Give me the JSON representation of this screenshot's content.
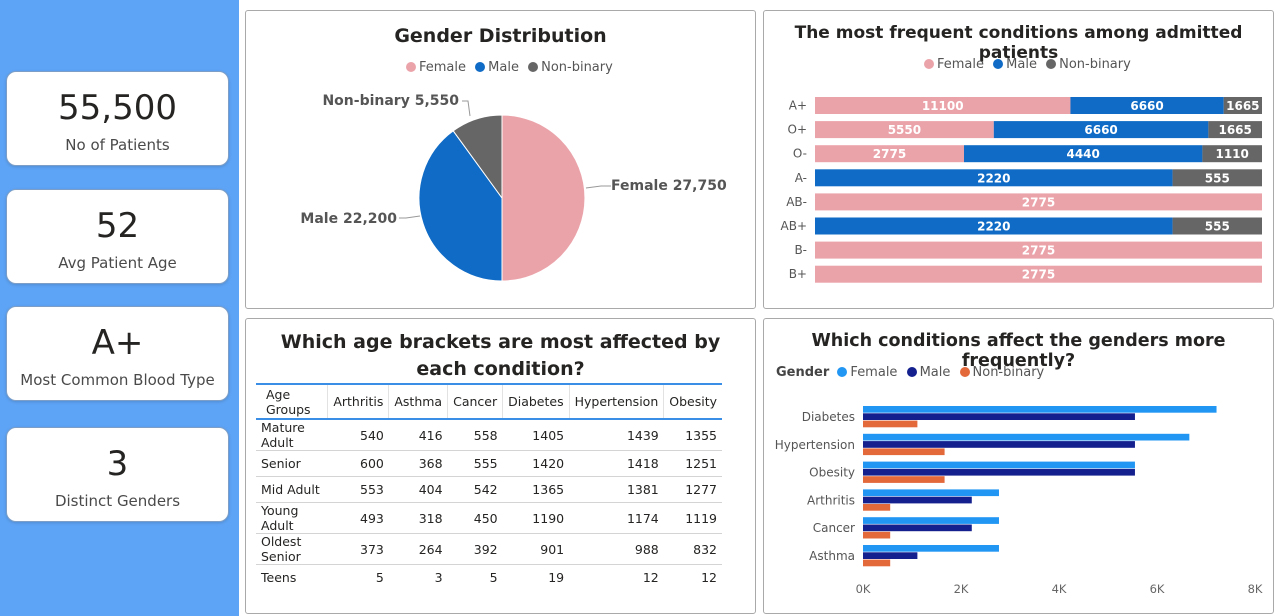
{
  "kpis": [
    {
      "value": "55,500",
      "label": "No of Patients"
    },
    {
      "value": "52",
      "label": "Avg Patient Age"
    },
    {
      "value": "A+",
      "label": "Most Common Blood Type"
    },
    {
      "value": "3",
      "label": "Distinct Genders"
    }
  ],
  "colors": {
    "female_pink": "#eba3aa",
    "male_blue": "#0f6bc5",
    "nonbinary_gray": "#666666",
    "female_light": "#2196f3",
    "male_navy": "#13208e",
    "nonbinary_orange": "#e3683a",
    "sidebar": "#5ea4f6"
  },
  "gender_chart": {
    "title": "Gender Distribution",
    "legend": [
      "Female",
      "Male",
      "Non-binary"
    ],
    "labels": [
      "Female 27,750",
      "Male 22,200",
      "Non-binary 5,550"
    ]
  },
  "blood_chart": {
    "title": "The most frequent conditions among admitted patients",
    "legend": [
      "Female",
      "Male",
      "Non-binary"
    ]
  },
  "age_table": {
    "title": "Which age brackets are most affected by each condition?",
    "headers": [
      "Age Groups",
      "Arthritis",
      "Asthma",
      "Cancer",
      "Diabetes",
      "Hypertension",
      "Obesity"
    ],
    "rows": [
      [
        "Mature Adult",
        "540",
        "416",
        "558",
        "1405",
        "1439",
        "1355"
      ],
      [
        "Senior",
        "600",
        "368",
        "555",
        "1420",
        "1418",
        "1251"
      ],
      [
        "Mid Adult",
        "553",
        "404",
        "542",
        "1365",
        "1381",
        "1277"
      ],
      [
        "Young Adult",
        "493",
        "318",
        "450",
        "1190",
        "1174",
        "1119"
      ],
      [
        "Oldest Senior",
        "373",
        "264",
        "392",
        "901",
        "988",
        "832"
      ],
      [
        "Teens",
        "5",
        "3",
        "5",
        "19",
        "12",
        "12"
      ]
    ]
  },
  "condition_chart": {
    "title": "Which conditions affect the genders more frequently?",
    "legend_title": "Gender",
    "legend": [
      "Female",
      "Male",
      "Non-binary"
    ]
  },
  "chart_data": [
    {
      "type": "pie",
      "title": "Gender Distribution",
      "categories": [
        "Female",
        "Male",
        "Non-binary"
      ],
      "values": [
        27750,
        22200,
        5550
      ],
      "legend_position": "top"
    },
    {
      "type": "bar",
      "orientation": "horizontal",
      "stacked": true,
      "normalized": true,
      "title": "The most frequent conditions among admitted patients",
      "categories": [
        "A+",
        "O+",
        "O-",
        "A-",
        "AB-",
        "AB+",
        "B-",
        "B+"
      ],
      "series": [
        {
          "name": "Female",
          "values": [
            11100,
            5550,
            2775,
            0,
            2775,
            0,
            2775,
            2775
          ]
        },
        {
          "name": "Male",
          "values": [
            6660,
            6660,
            4440,
            2220,
            0,
            2220,
            0,
            0
          ]
        },
        {
          "name": "Non-binary",
          "values": [
            1665,
            1665,
            1110,
            555,
            0,
            555,
            0,
            0
          ]
        }
      ],
      "legend_position": "top"
    },
    {
      "type": "table",
      "title": "Which age brackets are most affected by each condition?",
      "columns": [
        "Age Groups",
        "Arthritis",
        "Asthma",
        "Cancer",
        "Diabetes",
        "Hypertension",
        "Obesity"
      ],
      "rows": [
        [
          "Mature Adult",
          540,
          416,
          558,
          1405,
          1439,
          1355
        ],
        [
          "Senior",
          600,
          368,
          555,
          1420,
          1418,
          1251
        ],
        [
          "Mid Adult",
          553,
          404,
          542,
          1365,
          1381,
          1277
        ],
        [
          "Young Adult",
          493,
          318,
          450,
          1190,
          1174,
          1119
        ],
        [
          "Oldest Senior",
          373,
          264,
          392,
          901,
          988,
          832
        ],
        [
          "Teens",
          5,
          3,
          5,
          19,
          12,
          12
        ]
      ]
    },
    {
      "type": "bar",
      "orientation": "horizontal",
      "grouped": true,
      "title": "Which conditions affect the genders more frequently?",
      "categories": [
        "Diabetes",
        "Hypertension",
        "Obesity",
        "Arthritis",
        "Cancer",
        "Asthma"
      ],
      "series": [
        {
          "name": "Female",
          "values": [
            7215,
            6660,
            5550,
            2775,
            2775,
            2775
          ]
        },
        {
          "name": "Male",
          "values": [
            5550,
            5550,
            5550,
            2220,
            2220,
            1110
          ]
        },
        {
          "name": "Non-binary",
          "values": [
            1110,
            1665,
            1665,
            555,
            555,
            555
          ]
        }
      ],
      "xlim": [
        0,
        8000
      ],
      "xticks": [
        "0K",
        "2K",
        "4K",
        "6K",
        "8K"
      ],
      "legend_title": "Gender",
      "legend_position": "top-left"
    }
  ]
}
